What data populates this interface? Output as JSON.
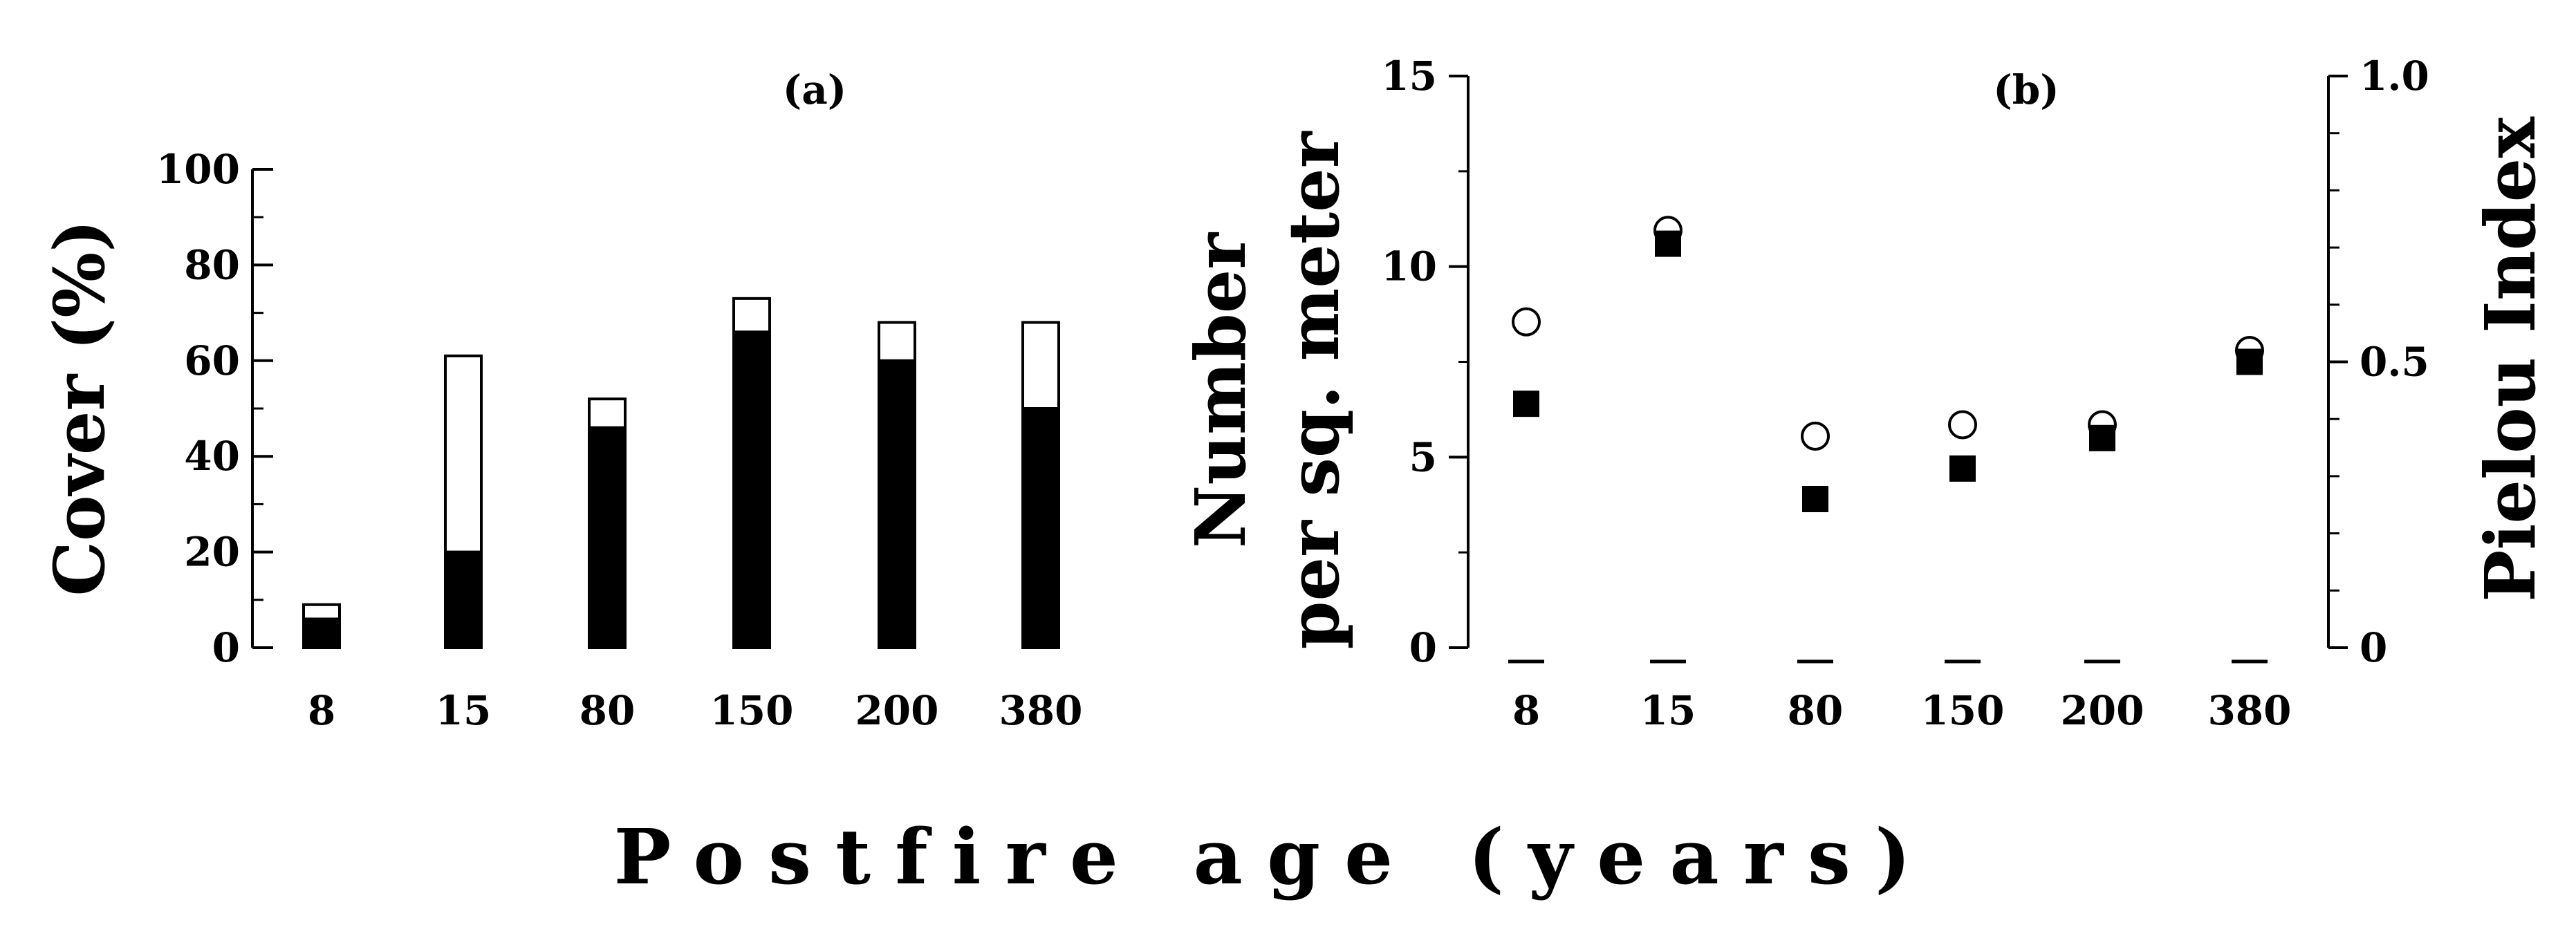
{
  "xlabel": "Postfire age (years)",
  "chart_data": [
    {
      "panel": "(a)",
      "type": "bar",
      "stacked": true,
      "categories": [
        "8",
        "15",
        "80",
        "150",
        "200",
        "380"
      ],
      "series": [
        {
          "values": [
            6,
            20,
            46,
            66,
            60,
            50
          ],
          "color": "#000000"
        },
        {
          "values": [
            3,
            41,
            6,
            7,
            8,
            18
          ],
          "color": "#ffffff"
        }
      ],
      "ylabel": "Cover (%)",
      "ylim": [
        0,
        100
      ],
      "yticks": [
        0,
        20,
        40,
        60,
        80,
        100
      ],
      "yticklabels": [
        "0",
        "20",
        "40",
        "60",
        "80",
        "100"
      ]
    },
    {
      "panel": "(b)",
      "type": "scatter",
      "categories": [
        "8",
        "15",
        "80",
        "150",
        "200",
        "380"
      ],
      "series": [
        {
          "axis": "left",
          "marker": "filled-square",
          "values": [
            6.4,
            10.6,
            3.9,
            4.7,
            5.5,
            7.5
          ]
        },
        {
          "axis": "right",
          "marker": "open-circle",
          "values": [
            0.57,
            0.73,
            0.37,
            0.39,
            0.39,
            0.52
          ]
        }
      ],
      "ylabel_left_line1": "Number",
      "ylabel_left_line2": "per sq. meter",
      "ylabel_right": "Pielou Index",
      "ylim_left": [
        0,
        15
      ],
      "ylim_right": [
        0,
        1.0
      ],
      "yticks_left": [
        0,
        5,
        10,
        15
      ],
      "yticklabels_left": [
        "0",
        "5",
        "10",
        "15"
      ],
      "yticks_right": [
        0,
        0.5,
        1.0
      ],
      "yticklabels_right": [
        "0",
        "0.5",
        "1.0"
      ]
    }
  ]
}
